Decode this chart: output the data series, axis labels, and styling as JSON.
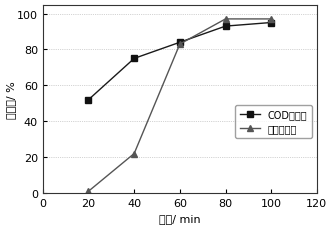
{
  "cod_x": [
    20,
    40,
    60,
    80,
    100
  ],
  "cod_y": [
    52,
    75,
    84,
    93,
    95
  ],
  "color_x": [
    20,
    40,
    60,
    80,
    100
  ],
  "color_y": [
    1,
    22,
    83,
    97,
    97
  ],
  "xlabel": "时间/ min",
  "ylabel": "去除率/ %",
  "xlim": [
    0,
    120
  ],
  "ylim": [
    0,
    105
  ],
  "xticks": [
    0,
    20,
    40,
    60,
    80,
    100,
    120
  ],
  "yticks": [
    0,
    20,
    40,
    60,
    80,
    100
  ],
  "legend_cod": "COD去除率",
  "legend_color": "色度去除率",
  "line_color": "#1a1a1a",
  "marker_color_cod": "#111111",
  "marker_color_hue": "#555555",
  "bg_color": "#ffffff"
}
